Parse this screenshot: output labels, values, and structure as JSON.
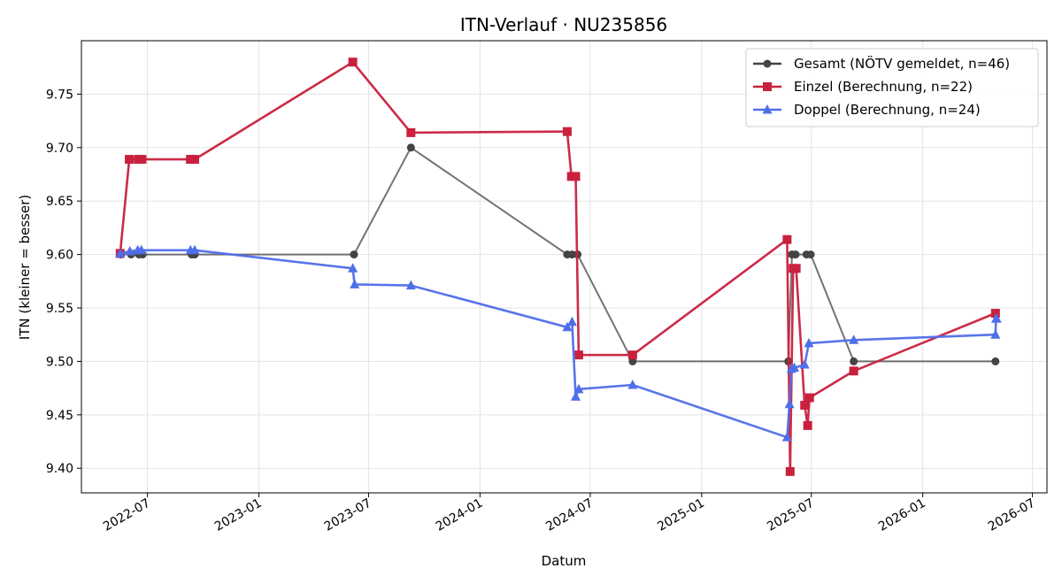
{
  "chart_data": {
    "type": "line",
    "title": "ITN-Verlauf · NU235856",
    "xlabel": "Datum",
    "ylabel": "ITN  (kleiner = besser)",
    "xlim": [
      "2022-03-14",
      "2026-07-25"
    ],
    "ylim": [
      9.377,
      9.8
    ],
    "x_ticks": [
      "2022-07-01",
      "2023-01-01",
      "2023-07-01",
      "2024-01-01",
      "2024-07-01",
      "2025-01-01",
      "2025-07-01",
      "2026-01-01",
      "2026-07-01"
    ],
    "x_tick_labels": [
      "2022-07",
      "2023-01",
      "2023-07",
      "2024-01",
      "2024-07",
      "2025-01",
      "2025-07",
      "2026-01",
      "2026-07"
    ],
    "y_ticks": [
      9.4,
      9.45,
      9.5,
      9.55,
      9.6,
      9.65,
      9.7,
      9.75
    ],
    "y_tick_labels": [
      "9.40",
      "9.45",
      "9.50",
      "9.55",
      "9.60",
      "9.65",
      "9.70",
      "9.75"
    ],
    "grid": true,
    "legend_position": "top-right",
    "series": [
      {
        "name": "Gesamt (NÖTV gemeldet, n=46)",
        "color": "#444444",
        "marker": "circle",
        "points": [
          [
            "2022-05-18",
            9.6
          ],
          [
            "2022-06-04",
            9.6
          ],
          [
            "2022-06-17",
            9.6
          ],
          [
            "2022-06-23",
            9.6
          ],
          [
            "2022-09-12",
            9.6
          ],
          [
            "2022-09-17",
            9.6
          ],
          [
            "2023-06-07",
            9.6
          ],
          [
            "2023-09-09",
            9.7
          ],
          [
            "2024-05-24",
            9.6
          ],
          [
            "2024-06-01",
            9.6
          ],
          [
            "2024-06-10",
            9.6
          ],
          [
            "2024-09-09",
            9.5
          ],
          [
            "2025-05-24",
            9.5
          ],
          [
            "2025-05-30",
            9.6
          ],
          [
            "2025-06-05",
            9.6
          ],
          [
            "2025-06-23",
            9.6
          ],
          [
            "2025-06-30",
            9.6
          ],
          [
            "2025-09-09",
            9.5
          ],
          [
            "2026-05-01",
            9.5
          ]
        ]
      },
      {
        "name": "Einzel (Berechnung, n=22)",
        "color": "#c9203e",
        "marker": "square",
        "points": [
          [
            "2022-05-17",
            9.601
          ],
          [
            "2022-06-01",
            9.689
          ],
          [
            "2022-06-16",
            9.689
          ],
          [
            "2022-06-22",
            9.689
          ],
          [
            "2022-09-10",
            9.689
          ],
          [
            "2022-09-17",
            9.689
          ],
          [
            "2023-06-05",
            9.78
          ],
          [
            "2023-09-09",
            9.714
          ],
          [
            "2024-05-24",
            9.715
          ],
          [
            "2024-05-31",
            9.673
          ],
          [
            "2024-06-07",
            9.673
          ],
          [
            "2024-06-12",
            9.506
          ],
          [
            "2024-09-09",
            9.506
          ],
          [
            "2025-05-22",
            9.614
          ],
          [
            "2025-05-27",
            9.397
          ],
          [
            "2025-06-01",
            9.587
          ],
          [
            "2025-06-06",
            9.587
          ],
          [
            "2025-06-20",
            9.459
          ],
          [
            "2025-06-25",
            9.44
          ],
          [
            "2025-06-28",
            9.466
          ],
          [
            "2025-09-09",
            9.491
          ],
          [
            "2026-05-01",
            9.545
          ]
        ]
      },
      {
        "name": "Doppel (Berechnung, n=24)",
        "color": "#4f6ee8",
        "marker": "triangle",
        "points": [
          [
            "2022-05-17",
            9.601
          ],
          [
            "2022-06-02",
            9.603
          ],
          [
            "2022-06-15",
            9.604
          ],
          [
            "2022-06-21",
            9.604
          ],
          [
            "2022-09-10",
            9.604
          ],
          [
            "2022-09-17",
            9.604
          ],
          [
            "2023-06-05",
            9.587
          ],
          [
            "2023-06-08",
            9.572
          ],
          [
            "2023-09-09",
            9.571
          ],
          [
            "2024-05-24",
            9.532
          ],
          [
            "2024-06-01",
            9.537
          ],
          [
            "2024-06-07",
            9.467
          ],
          [
            "2024-06-12",
            9.474
          ],
          [
            "2024-09-09",
            9.478
          ],
          [
            "2025-05-22",
            9.429
          ],
          [
            "2025-05-26",
            9.46
          ],
          [
            "2025-05-29",
            9.493
          ],
          [
            "2025-06-03",
            9.494
          ],
          [
            "2025-06-20",
            9.497
          ],
          [
            "2025-06-27",
            9.517
          ],
          [
            "2025-09-09",
            9.52
          ],
          [
            "2026-05-01",
            9.525
          ],
          [
            "2026-05-02",
            9.54
          ],
          [
            "2026-05-03",
            9.54
          ]
        ]
      }
    ]
  }
}
